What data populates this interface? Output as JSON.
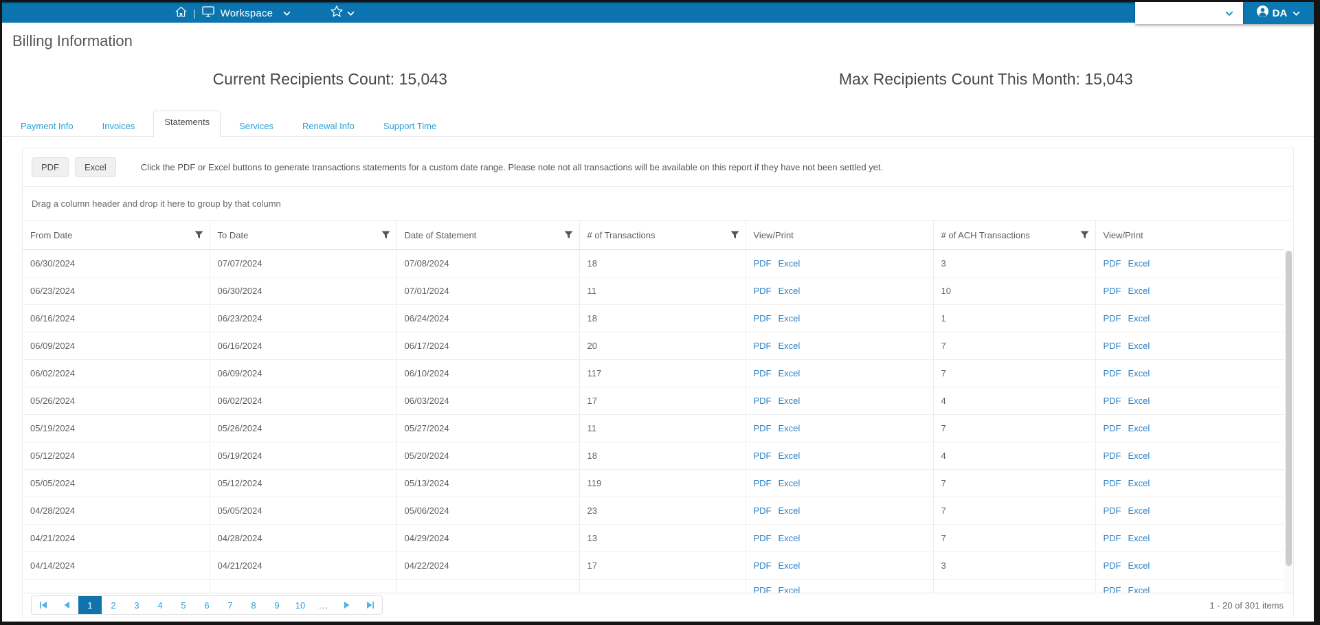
{
  "topbar": {
    "workspace_label": "Workspace",
    "user_initials": "DA"
  },
  "page": {
    "title": "Billing Information",
    "current_count": "Current Recipients Count: 15,043",
    "max_count": "Max Recipients Count This Month: 15,043"
  },
  "tabs": [
    {
      "label": "Payment Info",
      "active": false
    },
    {
      "label": "Invoices",
      "active": false
    },
    {
      "label": "Statements",
      "active": true
    },
    {
      "label": "Services",
      "active": false
    },
    {
      "label": "Renewal Info",
      "active": false
    },
    {
      "label": "Support Time",
      "active": false
    }
  ],
  "toolbar": {
    "pdf_button": "PDF",
    "excel_button": "Excel",
    "instruction": "Click the PDF or Excel buttons to generate transactions statements for a custom date range. Please note not all transactions will be available on this report if they have not been settled yet."
  },
  "grid": {
    "group_hint": "Drag a column header and drop it here to group by that column",
    "columns": [
      {
        "label": "From Date",
        "filter": true
      },
      {
        "label": "To Date",
        "filter": true
      },
      {
        "label": "Date of Statement",
        "filter": true
      },
      {
        "label": "# of Transactions",
        "filter": true
      },
      {
        "label": "View/Print",
        "filter": false
      },
      {
        "label": "# of ACH Transactions",
        "filter": true
      },
      {
        "label": "View/Print",
        "filter": false
      }
    ],
    "links": {
      "pdf": "PDF",
      "excel": "Excel"
    },
    "rows": [
      {
        "from": "06/30/2024",
        "to": "07/07/2024",
        "statement": "07/08/2024",
        "transactions": "18",
        "ach": "3"
      },
      {
        "from": "06/23/2024",
        "to": "06/30/2024",
        "statement": "07/01/2024",
        "transactions": "11",
        "ach": "10"
      },
      {
        "from": "06/16/2024",
        "to": "06/23/2024",
        "statement": "06/24/2024",
        "transactions": "18",
        "ach": "1"
      },
      {
        "from": "06/09/2024",
        "to": "06/16/2024",
        "statement": "06/17/2024",
        "transactions": "20",
        "ach": "7"
      },
      {
        "from": "06/02/2024",
        "to": "06/09/2024",
        "statement": "06/10/2024",
        "transactions": "117",
        "ach": "7"
      },
      {
        "from": "05/26/2024",
        "to": "06/02/2024",
        "statement": "06/03/2024",
        "transactions": "17",
        "ach": "4"
      },
      {
        "from": "05/19/2024",
        "to": "05/26/2024",
        "statement": "05/27/2024",
        "transactions": "11",
        "ach": "7"
      },
      {
        "from": "05/12/2024",
        "to": "05/19/2024",
        "statement": "05/20/2024",
        "transactions": "18",
        "ach": "4"
      },
      {
        "from": "05/05/2024",
        "to": "05/12/2024",
        "statement": "05/13/2024",
        "transactions": "119",
        "ach": "7"
      },
      {
        "from": "04/28/2024",
        "to": "05/05/2024",
        "statement": "05/06/2024",
        "transactions": "23",
        "ach": "7"
      },
      {
        "from": "04/21/2024",
        "to": "04/28/2024",
        "statement": "04/29/2024",
        "transactions": "13",
        "ach": "7"
      },
      {
        "from": "04/14/2024",
        "to": "04/21/2024",
        "statement": "04/22/2024",
        "transactions": "17",
        "ach": "3"
      }
    ],
    "has_partial_row": true
  },
  "pager": {
    "pages": [
      "1",
      "2",
      "3",
      "4",
      "5",
      "6",
      "7",
      "8",
      "9",
      "10"
    ],
    "active_page": "1",
    "ellipsis": "...",
    "info": "1 - 20 of 301 items"
  }
}
